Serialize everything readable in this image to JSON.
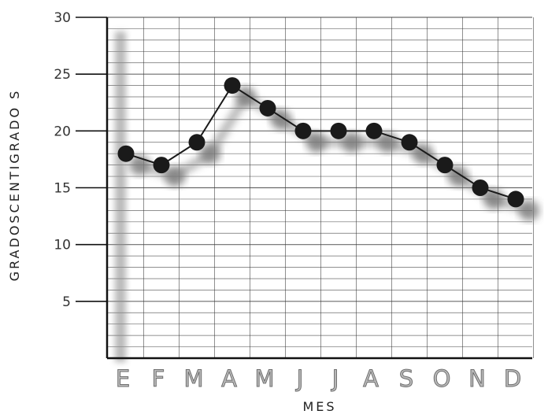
{
  "chart_data": {
    "type": "line",
    "title": "",
    "xlabel": "MES",
    "ylabel": "GRADOSCENTIGRADO S",
    "categories": [
      "E",
      "F",
      "M",
      "A",
      "M",
      "J",
      "J",
      "A",
      "S",
      "O",
      "N",
      "D"
    ],
    "y_ticks": [
      "5",
      "10",
      "15",
      "20",
      "25",
      "30"
    ],
    "ylim": [
      0,
      30
    ],
    "grid": true,
    "series": [
      {
        "values": [
          18,
          17,
          19,
          24,
          22,
          20,
          20,
          20,
          19,
          17,
          15,
          14
        ]
      }
    ],
    "shadow_series": [
      {
        "values": [
          17,
          16,
          18,
          23,
          21,
          19,
          19,
          19,
          18,
          16,
          14,
          13
        ]
      }
    ],
    "colors": {
      "line": "#1a1a1a",
      "marker": "#1a1a1a",
      "shadow": "#7a7a7a",
      "grid": "#3a3a3a"
    }
  }
}
